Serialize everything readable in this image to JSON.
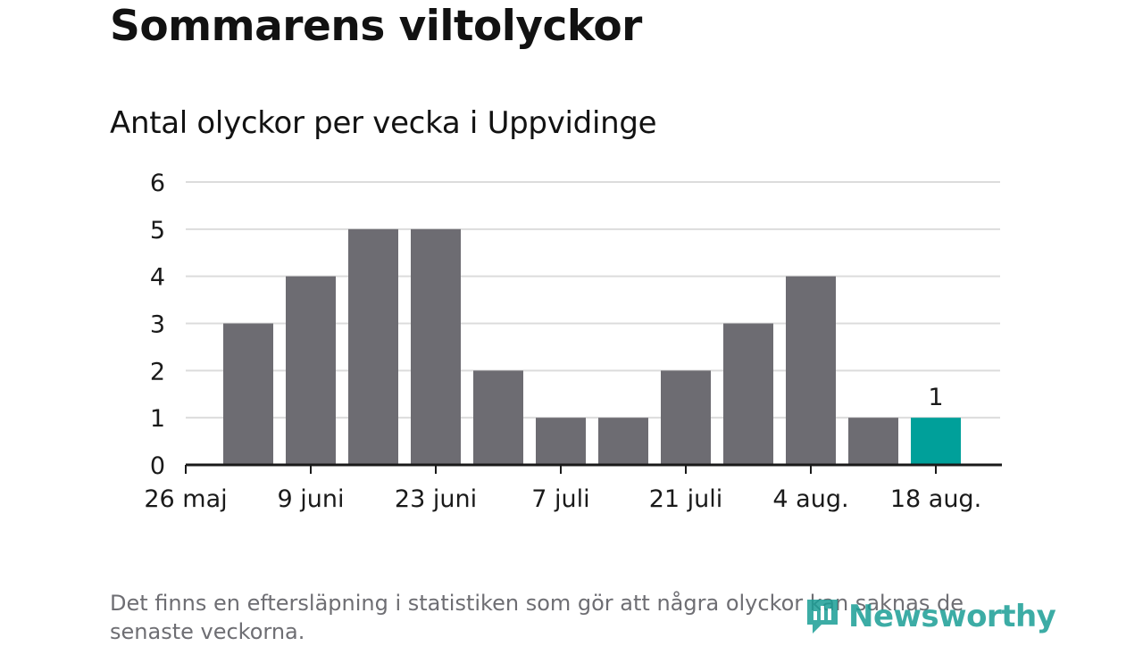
{
  "title": "Sommarens viltolyckor",
  "subtitle": "Antal olyckor per vecka i Uppvidinge",
  "footnote": "Det finns en eftersläpning i statistiken som gör att några olyckor kan saknas de senaste veckorna.",
  "brand": {
    "name": "Newsworthy",
    "icon": "newsworthy-logo-icon",
    "color": "#1b9e96"
  },
  "colors": {
    "bar": "#6d6c72",
    "highlight": "#00a09a",
    "grid": "#dcdcdc",
    "axis": "#1a1a1a"
  },
  "chart_data": {
    "type": "bar",
    "title": "",
    "xlabel": "",
    "ylabel": "",
    "ylim": [
      0,
      6
    ],
    "yticks": [
      0,
      1,
      2,
      3,
      4,
      5,
      6
    ],
    "grid": true,
    "categories": [
      "26 maj",
      "2 juni",
      "9 juni",
      "16 juni",
      "23 juni",
      "30 juni",
      "7 juli",
      "14 juli",
      "21 juli",
      "28 juli",
      "4 aug.",
      "11 aug.",
      "18 aug."
    ],
    "values": [
      null,
      3,
      4,
      5,
      5,
      2,
      1,
      1,
      2,
      3,
      4,
      1,
      1
    ],
    "xticks": [
      {
        "index": 0,
        "label": "26 maj"
      },
      {
        "index": 2,
        "label": "9 juni"
      },
      {
        "index": 4,
        "label": "23 juni"
      },
      {
        "index": 6,
        "label": "7 juli"
      },
      {
        "index": 8,
        "label": "21 juli"
      },
      {
        "index": 10,
        "label": "4 aug."
      },
      {
        "index": 12,
        "label": "18 aug."
      }
    ],
    "highlight_index": 12,
    "data_labels": [
      {
        "index": 12,
        "text": "1"
      }
    ]
  }
}
